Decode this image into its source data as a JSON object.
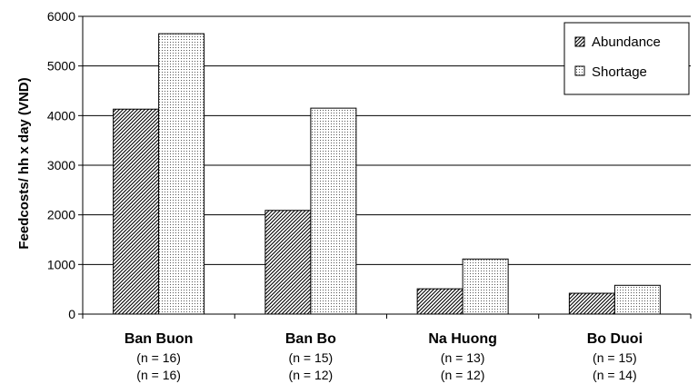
{
  "chart_data": {
    "type": "bar",
    "title": "",
    "xlabel": "",
    "ylabel": "Feedcosts/ hh x day (VND)",
    "ylim": [
      0,
      6000
    ],
    "yticks": [
      0,
      1000,
      2000,
      3000,
      4000,
      5000,
      6000
    ],
    "grid": true,
    "legend_position": "top-right",
    "categories": [
      "Ban Buon",
      "Ban Bo",
      "Na Huong",
      "Bo Duoi"
    ],
    "sample_sizes": [
      [
        "(n = 16)",
        "(n = 16)"
      ],
      [
        "(n = 15)",
        "(n = 12)"
      ],
      [
        "(n = 13)",
        "(n = 12)"
      ],
      [
        "(n = 15)",
        "(n = 14)"
      ]
    ],
    "series": [
      {
        "name": "Abundance",
        "pattern": "diagonal-hatch",
        "values": [
          4130,
          2090,
          510,
          420
        ]
      },
      {
        "name": "Shortage",
        "pattern": "dotted",
        "values": [
          5650,
          4150,
          1110,
          580
        ]
      }
    ]
  }
}
